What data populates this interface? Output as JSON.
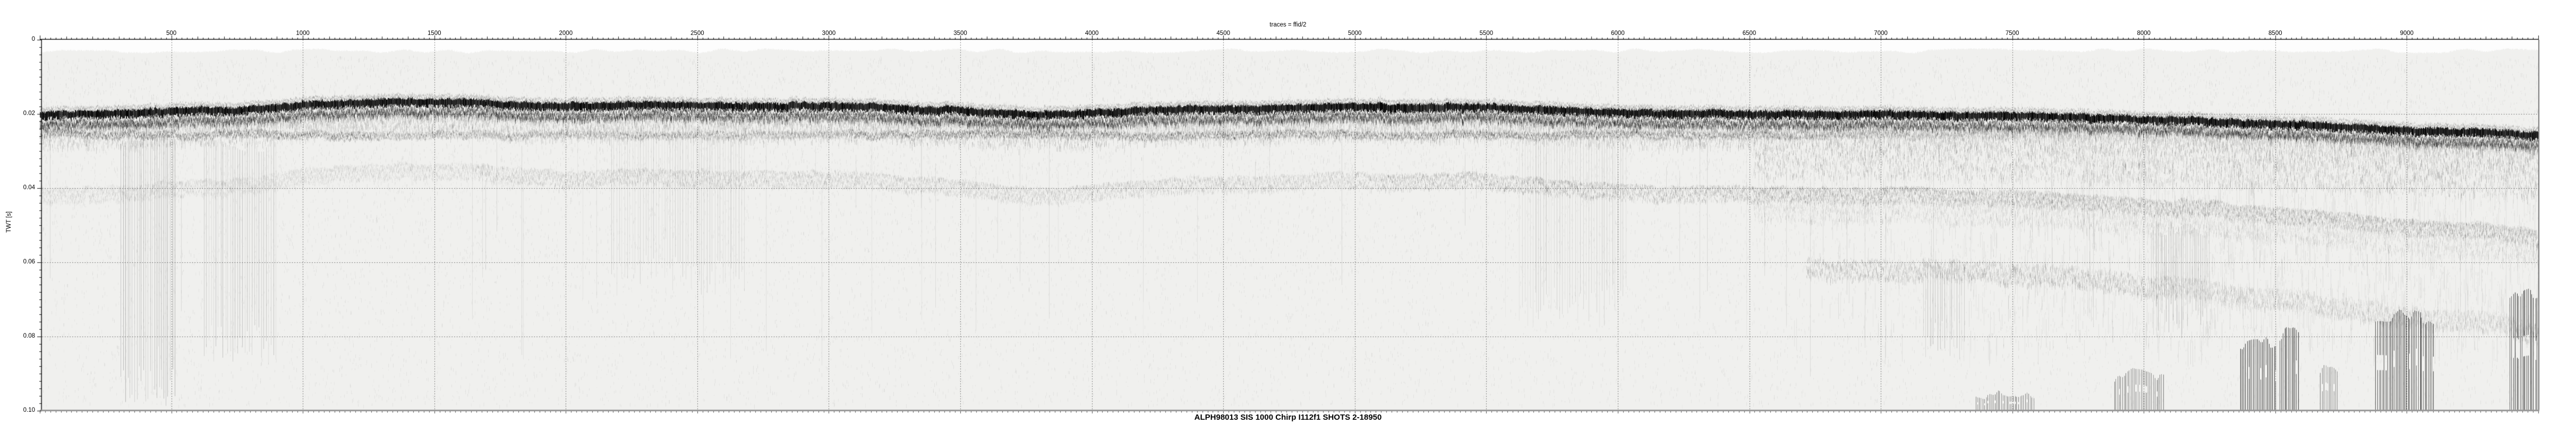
{
  "figure": {
    "top_title": "traces = ffid/2",
    "bottom_title": "ALPH98013 SIS 1000 Chirp I112f1 SHOTS 2-18950",
    "y_axis_label": "TWT [s]"
  },
  "chart_data": {
    "type": "heatmap",
    "title": "traces = ffid/2",
    "subtitle": "ALPH98013 SIS 1000 Chirp I112f1 SHOTS 2-18950",
    "xlabel": "traces",
    "ylabel": "TWT [s]",
    "xlim": [
      0,
      9500
    ],
    "x_tick_values": [
      500,
      1000,
      1500,
      2000,
      2500,
      3000,
      3500,
      4000,
      4500,
      5000,
      5500,
      6000,
      6500,
      7000,
      7500,
      8000,
      8500,
      9000
    ],
    "x_minor_tick_step_traces": 20,
    "ylim": [
      0,
      0.1
    ],
    "y_tick_labels": [
      "0",
      "0.02",
      "0.04",
      "0.06",
      "0.08",
      "0.10"
    ],
    "y_tick_values": [
      0,
      0.02,
      0.04,
      0.06,
      0.08,
      0.1
    ],
    "y_minor_tick_step_s": 0.002,
    "grid": "dotted lines at major ticks",
    "appearance": "greyscale sub-bottom profiler section, light speckled background, strong black seafloor reflector",
    "series": [
      {
        "name": "seafloor-reflector",
        "traces": [
          10,
          250,
          495,
          760,
          1000,
          1260,
          1670,
          1970,
          2270,
          2580,
          2880,
          3180,
          3480,
          3790,
          3990,
          4190,
          4490,
          4800,
          5100,
          5400,
          5710,
          6010,
          6310,
          6620,
          6920,
          7220,
          7520,
          7830,
          8130,
          8430,
          8740,
          9040,
          9340,
          9500
        ],
        "twt_s": [
          0.02,
          0.0199,
          0.0194,
          0.0189,
          0.0174,
          0.0169,
          0.0169,
          0.0177,
          0.0174,
          0.0179,
          0.0179,
          0.0181,
          0.019,
          0.02,
          0.0199,
          0.0191,
          0.0187,
          0.0183,
          0.018,
          0.0181,
          0.0189,
          0.0196,
          0.0199,
          0.0201,
          0.0203,
          0.0201,
          0.0204,
          0.021,
          0.0217,
          0.0224,
          0.0234,
          0.0243,
          0.0251,
          0.0256
        ]
      },
      {
        "name": "sub-bottom-reflector",
        "note": "faint, near-constant depth, fades out to the right",
        "trace_range": [
          10,
          8230
        ],
        "approx_twt_s": 0.0253
      },
      {
        "name": "seafloor-multiple",
        "note": "very faint diffuse band",
        "relation": "2 x seafloor TWT"
      },
      {
        "name": "deep-noise-band",
        "note": "extremely faint",
        "relation": "3 x seafloor TWT",
        "trace_range": [
          6720,
          9500
        ]
      }
    ],
    "noise_bursts": [
      {
        "traces": [
          7360,
          7585
        ],
        "twt_top_s": 0.0965
      },
      {
        "traces": [
          7885,
          8075
        ],
        "twt_top_s": 0.0915
      },
      {
        "traces": [
          8365,
          8505
        ],
        "twt_top_s": 0.0827
      },
      {
        "traces": [
          8515,
          8590
        ],
        "twt_top_s": 0.08
      },
      {
        "traces": [
          8670,
          8740
        ],
        "twt_top_s": 0.0893
      },
      {
        "traces": [
          8880,
          9100
        ],
        "twt_top_s": 0.0761
      },
      {
        "traces": [
          9390,
          9500
        ],
        "twt_top_s": 0.0695
      }
    ]
  },
  "colors": {
    "page_bg": "#ffffff",
    "plot_bg": "#f0f0ee",
    "amplitude": "#000000",
    "axis": "#1a1a1a",
    "grid_dots": "#555555",
    "right_border": "#777777",
    "bottom_border": "#999999",
    "text": "#000000"
  }
}
